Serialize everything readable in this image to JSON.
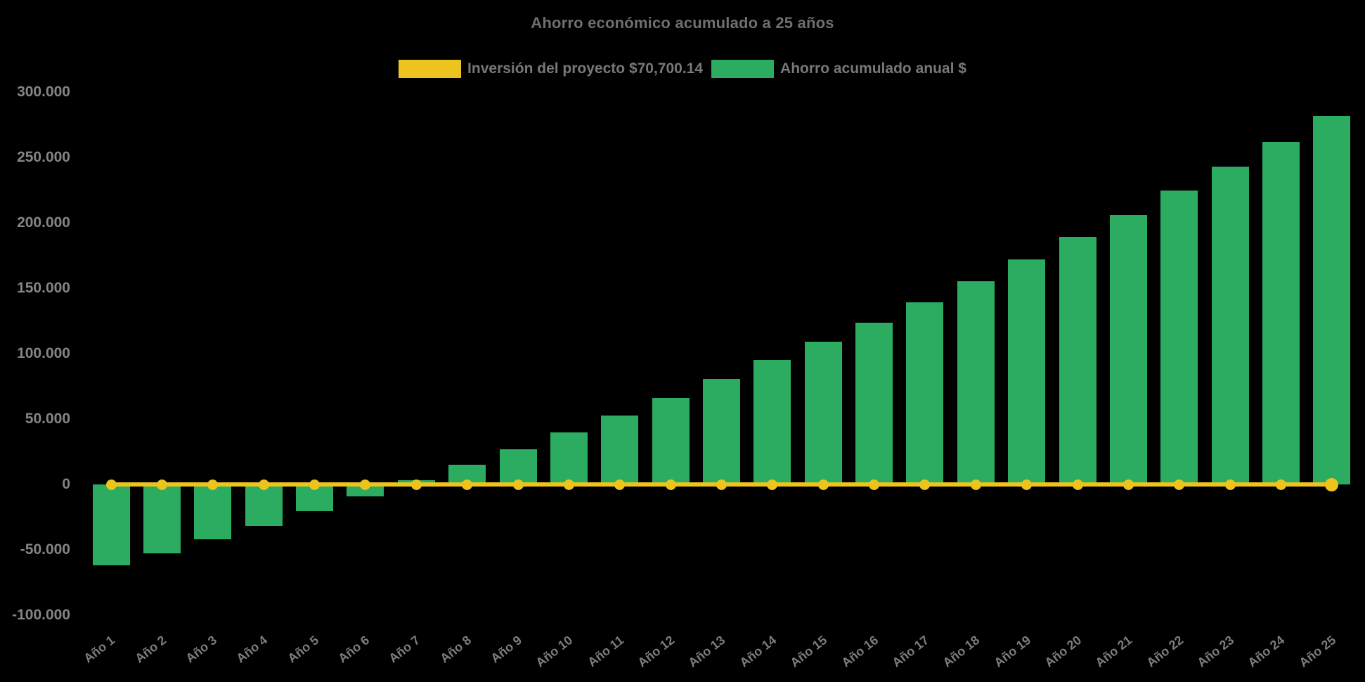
{
  "chart_data": {
    "type": "mixed",
    "title": "Ahorro económico acumulado a 25 años",
    "background_color": "#000000",
    "grid": false,
    "legend_position": "top",
    "categories": [
      "Año 1",
      "Año 2",
      "Año 3",
      "Año 4",
      "Año 5",
      "Año 6",
      "Año 7",
      "Año 8",
      "Año 9",
      "Año 10",
      "Año 11",
      "Año 12",
      "Año 13",
      "Año 14",
      "Año 15",
      "Año 16",
      "Año 17",
      "Año 18",
      "Año 19",
      "Año 20",
      "Año 21",
      "Año 22",
      "Año 23",
      "Año 24",
      "Año 25"
    ],
    "series": [
      {
        "name": "Inversión del proyecto $70,700.14",
        "type": "line",
        "color": "#edc41d",
        "marker": "circle",
        "values": [
          0,
          0,
          0,
          0,
          0,
          0,
          0,
          0,
          0,
          0,
          0,
          0,
          0,
          0,
          0,
          0,
          0,
          0,
          0,
          0,
          0,
          0,
          0,
          0,
          0
        ]
      },
      {
        "name": "Ahorro acumulado anual $",
        "type": "bar",
        "color": "#2bac61",
        "values": [
          -62000,
          -52500,
          -42000,
          -31500,
          -20500,
          -9000,
          3000,
          15000,
          27000,
          40000,
          52500,
          66000,
          80500,
          95000,
          109000,
          123500,
          139500,
          155500,
          172000,
          189000,
          206000,
          224500,
          243000,
          262000,
          281500
        ]
      }
    ],
    "y_axis": {
      "min": -100000,
      "max": 300000,
      "step": 50000,
      "tick_labels": [
        "300.000",
        "250.000",
        "200.000",
        "150.000",
        "100.000",
        "50.000",
        "0",
        "-50.000",
        "-100.000"
      ]
    },
    "x_axis": {
      "tick_rotation_deg": -38
    }
  }
}
